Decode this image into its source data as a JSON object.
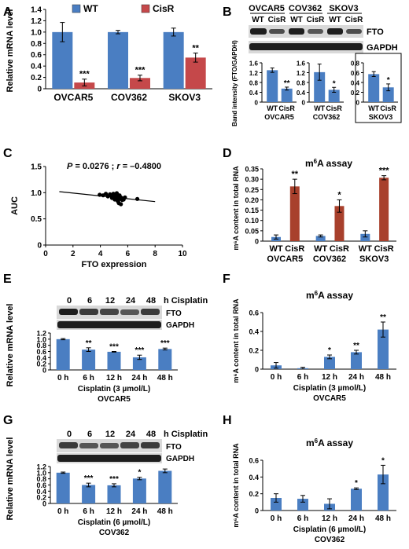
{
  "panel_letters": [
    "A",
    "B",
    "C",
    "D",
    "E",
    "F",
    "G",
    "H"
  ],
  "blots": {
    "B": {
      "cell_lines": [
        "OVCAR5",
        "COV362",
        "SKOV3"
      ],
      "lane_labels": [
        "WT",
        "CisR",
        "WT",
        "CisR",
        "WT",
        "CisR"
      ],
      "rows": [
        "FTO",
        "GAPDH"
      ]
    },
    "E": {
      "times": [
        "0",
        "6",
        "12",
        "24",
        "48"
      ],
      "time_suffix": "h Cisplatin",
      "rows": [
        "FTO",
        "GAPDH"
      ]
    },
    "G": {
      "times": [
        "0",
        "6",
        "12",
        "24",
        "48"
      ],
      "time_suffix": "h Cisplatin",
      "rows": [
        "FTO",
        "GAPDH"
      ]
    }
  },
  "chart_data": [
    {
      "panel": "A",
      "type": "bar",
      "categories": [
        "OVCAR5",
        "COV362",
        "SKOV3"
      ],
      "series": [
        {
          "name": "WT",
          "values": [
            1.0,
            1.0,
            1.0
          ],
          "errors": [
            0.17,
            0.03,
            0.07
          ],
          "color": "#4a7ec2"
        },
        {
          "name": "CisR",
          "values": [
            0.11,
            0.19,
            0.55
          ],
          "errors": [
            0.06,
            0.05,
            0.08
          ],
          "color": "#c5484a"
        }
      ],
      "sig": [
        "",
        "***",
        "",
        "***",
        "",
        "**"
      ],
      "ylabel": "Relative mRNA level",
      "ylim": [
        0,
        1.4
      ],
      "yticks": [
        "0",
        "0.2",
        "0.4",
        "0.6",
        "0.8",
        "1.0",
        "1.2",
        "1.4"
      ],
      "legend_position": "top"
    },
    {
      "panel": "B",
      "type": "bar",
      "shared_ylabel": "Band intensity (FTO/GAPDH)",
      "subplots": [
        {
          "title": "OVCAR5",
          "categories": [
            "WT",
            "CisR"
          ],
          "values": [
            1.3,
            0.55
          ],
          "errors": [
            0.09,
            0.06
          ],
          "sig": [
            "",
            "**"
          ],
          "ylim": [
            0,
            1.6
          ],
          "yticks": [
            "0",
            "0.4",
            "0.8",
            "1.2",
            "1.6"
          ]
        },
        {
          "title": "COV362",
          "categories": [
            "WT",
            "CisR"
          ],
          "values": [
            1.22,
            0.5
          ],
          "errors": [
            0.33,
            0.1
          ],
          "sig": [
            "",
            "*"
          ],
          "ylim": [
            0,
            1.6
          ],
          "yticks": [
            "0",
            "0.4",
            "0.8",
            "1.2",
            "1.6"
          ]
        },
        {
          "title": "SKOV3",
          "categories": [
            "WT",
            "CisR"
          ],
          "values": [
            0.57,
            0.3
          ],
          "errors": [
            0.05,
            0.07
          ],
          "sig": [
            "",
            "*"
          ],
          "ylim": [
            0,
            0.8
          ],
          "yticks": [
            "0",
            "0.2",
            "0.4",
            "0.6",
            "0.8"
          ]
        }
      ]
    },
    {
      "panel": "C",
      "type": "scatter",
      "annotation_P": "P",
      "annotation_rest": " = 0.0276 ; ",
      "annotation_r": "r",
      "annotation_rval": " = –0.4800",
      "xlabel": "FTO expression",
      "ylabel": "AUC",
      "xlim": [
        0,
        10
      ],
      "ylim": [
        0,
        1.5
      ],
      "xticks": [
        "0",
        "2",
        "4",
        "6",
        "8",
        "10"
      ],
      "yticks": [
        "0",
        "0.5",
        "1.0",
        "1.5"
      ],
      "points_x": [
        3.95,
        4.2,
        4.4,
        4.55,
        4.7,
        4.8,
        4.85,
        4.95,
        5.0,
        5.05,
        5.1,
        5.15,
        5.2,
        5.25,
        5.3,
        5.35,
        5.4,
        5.45,
        5.5,
        5.55,
        5.6,
        5.2,
        5.3,
        5.4,
        5.0,
        5.7,
        5.8,
        6.7
      ],
      "points_y": [
        0.96,
        0.95,
        0.98,
        0.93,
        0.97,
        0.95,
        0.9,
        0.98,
        0.93,
        0.87,
        0.97,
        0.9,
        0.95,
        0.85,
        0.93,
        0.8,
        0.88,
        0.92,
        0.78,
        0.9,
        0.86,
        0.99,
        0.83,
        0.95,
        0.89,
        0.87,
        0.91,
        0.88
      ],
      "fit_line": {
        "x": [
          1.0,
          8.0
        ],
        "y": [
          1.02,
          0.83
        ]
      }
    },
    {
      "panel": "D",
      "type": "bar",
      "title_prefix": "m",
      "title_sup": "6",
      "title_suffix": "A assay",
      "categories": [
        "WT",
        "CisR",
        "WT",
        "CisR",
        "WT",
        "CisR"
      ],
      "groups": [
        "OVCAR5",
        "COV362",
        "SKOV3"
      ],
      "values": [
        0.02,
        0.265,
        0.025,
        0.17,
        0.035,
        0.307
      ],
      "errors": [
        0.01,
        0.035,
        0.005,
        0.03,
        0.015,
        0.01
      ],
      "colors": [
        "#4a7ec2",
        "#a8402c",
        "#4a7ec2",
        "#a8402c",
        "#4a7ec2",
        "#a8402c"
      ],
      "sig": [
        "",
        "**",
        "",
        "*",
        "",
        "***"
      ],
      "ylabel": "m⁶A content in total RNA",
      "ylim": [
        0,
        0.35
      ],
      "yticks": [
        "0",
        "0.05",
        "0.10",
        "0.15",
        "0.20",
        "0.25",
        "0.30",
        "0.35"
      ]
    },
    {
      "panel": "E",
      "type": "bar",
      "categories": [
        "0 h",
        "6 h",
        "12 h",
        "24 h",
        "48 h"
      ],
      "values": [
        1.0,
        0.66,
        0.59,
        0.41,
        0.68
      ],
      "errors": [
        0.02,
        0.06,
        0.01,
        0.07,
        0.03
      ],
      "sig": [
        "",
        "**",
        "***",
        "***",
        "***"
      ],
      "xlabel": "Cisplatin (3 µmol/L)",
      "xsublabel": "OVCAR5",
      "ylabel": "Relative mRNA level",
      "ylim": [
        0,
        1.2
      ],
      "yticks": [
        "0",
        "0.2",
        "0.4",
        "0.6",
        "0.8",
        "1.0",
        "1.2"
      ]
    },
    {
      "panel": "F",
      "type": "bar",
      "title_prefix": "m",
      "title_sup": "6",
      "title_suffix": "A assay",
      "categories": [
        "0 h",
        "6 h",
        "12 h",
        "24 h",
        "48 h"
      ],
      "values": [
        0.04,
        0.01,
        0.13,
        0.18,
        0.42
      ],
      "errors": [
        0.03,
        0.01,
        0.02,
        0.02,
        0.08
      ],
      "sig": [
        "",
        "",
        "*",
        "**",
        "**"
      ],
      "xlabel": "Cisplatin (3 µmol/L)",
      "xsublabel": "OVCAR5",
      "ylabel": "m⁶A content in total RNA",
      "ylim": [
        0,
        0.6
      ],
      "yticks": [
        "0",
        "0.2",
        "0.4",
        "0.6"
      ]
    },
    {
      "panel": "G",
      "type": "bar",
      "categories": [
        "0 h",
        "6 h",
        "12 h",
        "24 h",
        "48 h"
      ],
      "values": [
        1.0,
        0.6,
        0.59,
        0.81,
        1.06
      ],
      "errors": [
        0.02,
        0.06,
        0.05,
        0.04,
        0.06
      ],
      "sig": [
        "",
        "***",
        "***",
        "*",
        ""
      ],
      "xlabel": "Cisplatin (6 µmol/L)",
      "xsublabel": "COV362",
      "ylabel": "Relative mRNA level",
      "ylim": [
        0,
        1.2
      ],
      "yticks": [
        "0",
        "0.2",
        "0.4",
        "0.6",
        "0.8",
        "1.0",
        "1.2"
      ]
    },
    {
      "panel": "H",
      "type": "bar",
      "title_prefix": "m",
      "title_sup": "6",
      "title_suffix": "A assay",
      "categories": [
        "0 h",
        "6 h",
        "12 h",
        "24 h",
        "48 h"
      ],
      "values": [
        0.15,
        0.14,
        0.08,
        0.26,
        0.43
      ],
      "errors": [
        0.05,
        0.04,
        0.06,
        0.01,
        0.11
      ],
      "sig": [
        "",
        "",
        "",
        "*",
        "*"
      ],
      "xlabel": "Cisplatin (6 µmol/L)",
      "xsublabel": "COV362",
      "ylabel": "m⁶A content in total RNA",
      "ylim": [
        0,
        0.6
      ],
      "yticks": [
        "0",
        "0.2",
        "0.4",
        "0.6"
      ]
    }
  ]
}
